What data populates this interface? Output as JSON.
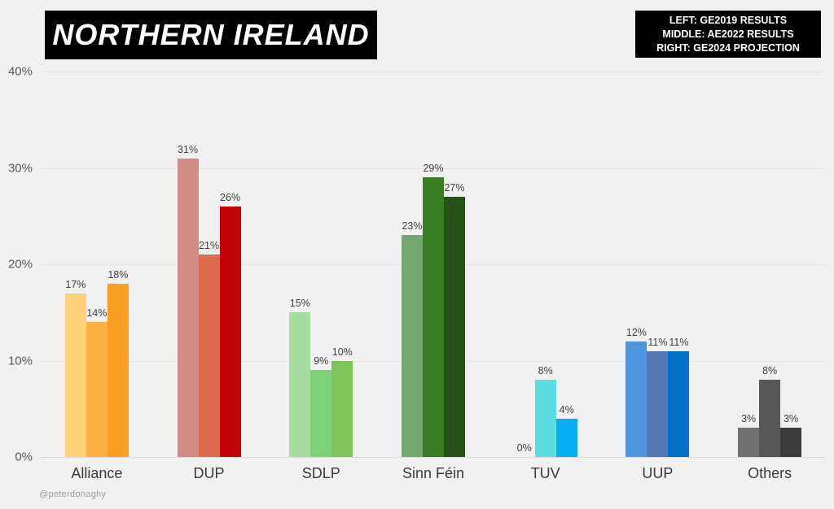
{
  "title": "NORTHERN IRELAND",
  "legend": {
    "lines": [
      "LEFT: GE2019 RESULTS",
      "MIDDLE: AE2022 RESULTS",
      "RIGHT: GE2024 PROJECTION"
    ]
  },
  "watermark": "@peterdonaghy",
  "colors": {
    "background": "#F1F1F1",
    "title_bg": "#000000",
    "title_text": "#FFFFFF",
    "gridline": "#E4E4E4",
    "axis_text": "#595959",
    "value_text": "#404040"
  },
  "chart_data": {
    "type": "bar",
    "title": "NORTHERN IRELAND",
    "categories": [
      "Alliance",
      "DUP",
      "SDLP",
      "Sinn Féin",
      "TUV",
      "UUP",
      "Others"
    ],
    "series": [
      {
        "name": "GE2019 RESULTS",
        "position": "left",
        "values": [
          17,
          31,
          15,
          23,
          0,
          12,
          3
        ]
      },
      {
        "name": "AE2022 RESULTS",
        "position": "middle",
        "values": [
          14,
          21,
          9,
          29,
          8,
          11,
          8
        ]
      },
      {
        "name": "GE2024 PROJECTION",
        "position": "right",
        "values": [
          18,
          26,
          10,
          27,
          4,
          11,
          3
        ]
      }
    ],
    "bar_colors": [
      [
        "#FED27A",
        "#FDAF44",
        "#FB9E24"
      ],
      [
        "#D18C84",
        "#DD6A4A",
        "#C00508"
      ],
      [
        "#A7DCA0",
        "#7DD277",
        "#7EC45A"
      ],
      [
        "#74A870",
        "#3A7D22",
        "#275217"
      ],
      [
        "#8EE6E6",
        "#5CDEE0",
        "#06AEEF"
      ],
      [
        "#4E94DC",
        "#5576B0",
        "#0070C6"
      ],
      [
        "#717171",
        "#575757",
        "#3A3A3A"
      ]
    ],
    "value_label_suffix": "%",
    "xlabel": "",
    "ylabel": "",
    "ylim": [
      0,
      40
    ],
    "yticks": [
      0,
      10,
      20,
      30,
      40
    ],
    "ytick_labels": [
      "0%",
      "10%",
      "20%",
      "30%",
      "40%"
    ],
    "grid": true,
    "legend_position": "top-right"
  }
}
